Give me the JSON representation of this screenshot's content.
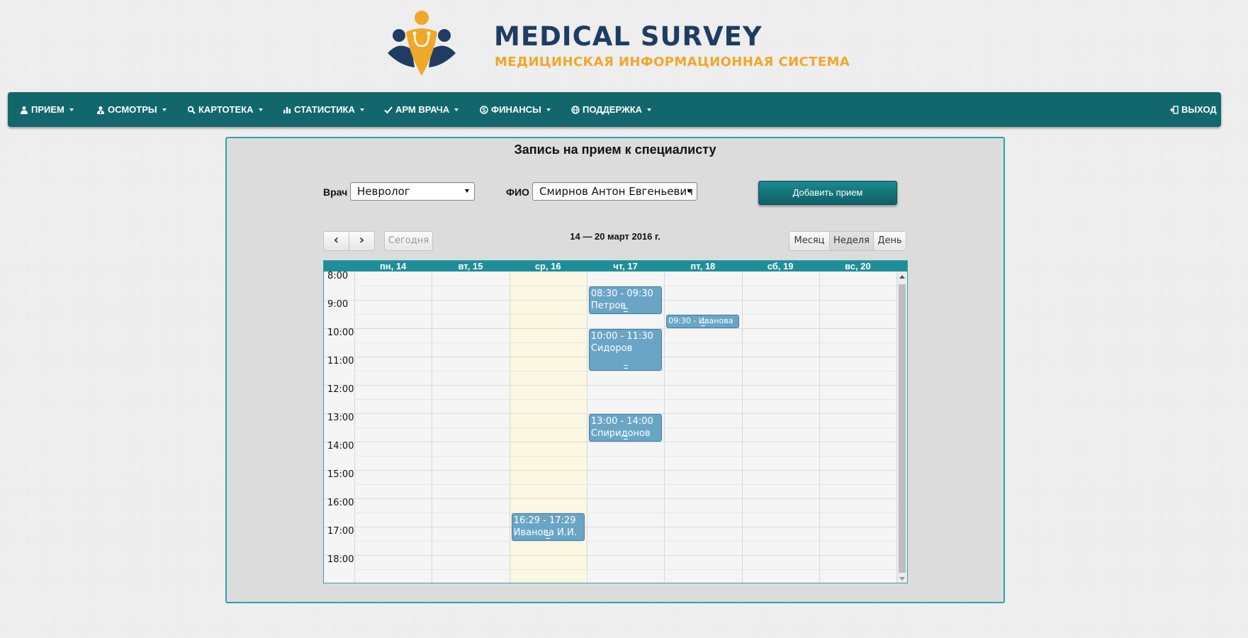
{
  "brand": {
    "title": "MEDICAL SURVEY",
    "subtitle": "МЕДИЦИНСКАЯ ИНФОРМАЦИОННАЯ СИСТЕМА",
    "colors": {
      "title": "#1f3d63",
      "subtitle": "#f0a82a",
      "nav": "#12676d",
      "accent": "#2aa3ac"
    }
  },
  "nav": {
    "items": [
      {
        "label": "ПРИЕМ",
        "icon": "user-icon"
      },
      {
        "label": "ОСМОТРЫ",
        "icon": "user-md-icon"
      },
      {
        "label": "КАРТОТЕКА",
        "icon": "search-icon"
      },
      {
        "label": "СТАТИСТИКА",
        "icon": "bar-chart-icon"
      },
      {
        "label": "АРМ ВРАЧА",
        "icon": "check-icon"
      },
      {
        "label": "ФИНАНСЫ",
        "icon": "coin-icon"
      },
      {
        "label": "ПОДДЕРЖКА",
        "icon": "globe-icon"
      }
    ],
    "logout": {
      "label": "ВЫХОД",
      "icon": "logout-icon"
    }
  },
  "panel": {
    "title": "Запись на прием к специалисту",
    "doctor_label": "Врач",
    "doctor_value": "Невролог",
    "fio_label": "ФИО",
    "fio_value": "Смирнов Антон Евгеньевич",
    "add_button": "Добавить прием"
  },
  "calendar": {
    "prev": "‹",
    "next": "›",
    "today": "Сегодня",
    "range": "14 — 20 март 2016 г.",
    "views": [
      "Месяц",
      "Неделя",
      "День"
    ],
    "active_view": "Неделя",
    "days": [
      "пн, 14",
      "вт, 15",
      "ср, 16",
      "чт, 17",
      "пт, 18",
      "сб, 19",
      "вс, 20"
    ],
    "today_day_index": 2,
    "hours": [
      "8:00",
      "9:00",
      "10:00",
      "11:00",
      "12:00",
      "13:00",
      "14:00",
      "15:00",
      "16:00",
      "17:00",
      "18:00"
    ],
    "events": [
      {
        "day": 3,
        "start": 8.5,
        "end": 9.5,
        "time": "08:30 - 09:30",
        "name": "Петров"
      },
      {
        "day": 4,
        "start": 9.5,
        "end": 10.0,
        "time": "09:30 - Иванова",
        "name": ""
      },
      {
        "day": 3,
        "start": 10.0,
        "end": 11.5,
        "time": "10:00 - 11:30",
        "name": "Сидоров"
      },
      {
        "day": 3,
        "start": 13.0,
        "end": 14.0,
        "time": "13:00 - 14:00",
        "name": "Спиридонов"
      },
      {
        "day": 2,
        "start": 16.5,
        "end": 17.5,
        "time": "16:29 - 17:29",
        "name": "Иванова И.И."
      }
    ]
  }
}
